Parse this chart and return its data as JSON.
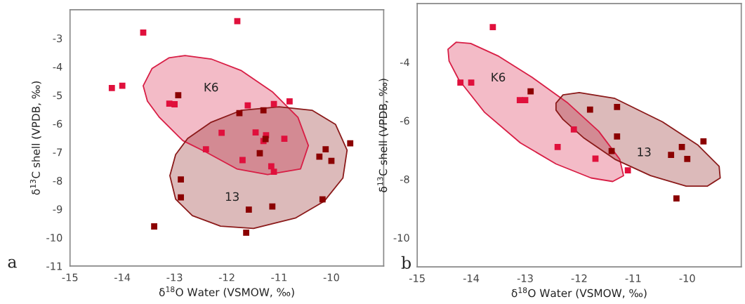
{
  "chart_data": [
    {
      "type": "scatter",
      "xlabel": "δ$^{18}$O Water (VSMOW, ‰)",
      "ylabel": "δ$^{13}$C shell (VPDB, ‰)",
      "xlim": [
        -15,
        -9
      ],
      "xticks": [
        -15,
        -14,
        -13,
        -12,
        -11,
        -10
      ],
      "ylim": [
        -11,
        -2
      ],
      "yticks": [
        -11,
        -10,
        -9,
        -8,
        -7,
        -6,
        -5,
        -4,
        -3
      ],
      "grid": false,
      "legend": false,
      "series": [
        {
          "type": "area",
          "color": "#d81e45",
          "x": [
            -13.6,
            -13.43,
            -13.11,
            -12.8,
            -12.3,
            -11.72,
            -11.13,
            -10.64,
            -10.44,
            -10.59,
            -11.22,
            -11.81,
            -12.39,
            -12.84,
            -13.29,
            -13.52
          ],
          "values": [
            -4.67,
            -4.06,
            -3.69,
            -3.61,
            -3.73,
            -4.14,
            -4.88,
            -5.78,
            -6.77,
            -7.59,
            -7.79,
            -7.59,
            -7.01,
            -6.6,
            -5.78,
            -5.21
          ]
        },
        {
          "type": "area",
          "color": "#8b1a1a",
          "x": [
            -13.09,
            -12.98,
            -12.75,
            -12.3,
            -11.72,
            -11.0,
            -10.37,
            -9.92,
            -9.7,
            -9.78,
            -10.14,
            -10.68,
            -11.49,
            -12.12,
            -12.66,
            -12.98
          ],
          "values": [
            -7.83,
            -7.09,
            -6.52,
            -5.95,
            -5.53,
            -5.41,
            -5.53,
            -6.03,
            -6.93,
            -7.91,
            -8.73,
            -9.31,
            -9.68,
            -9.6,
            -9.23,
            -8.65
          ]
        },
        {
          "color": "#e0103c",
          "marker": "square",
          "x": [
            -13.6,
            -11.8,
            -14.2,
            -14.0,
            -13.1,
            -13.0,
            -11.6,
            -11.1,
            -10.8,
            -12.1,
            -10.9,
            -11.7
          ],
          "values": [
            -2.8,
            -2.4,
            -4.75,
            -4.67,
            -5.3,
            -5.32,
            -5.36,
            -5.31,
            -5.22,
            -6.32,
            -6.53,
            -7.28
          ]
        },
        {
          "color": "#e0103c",
          "marker": "square",
          "x": [
            -12.4,
            -11.45,
            -11.25,
            -11.3,
            -11.15,
            -11.1
          ],
          "values": [
            -6.9,
            -6.31,
            -6.41,
            -6.61,
            -7.5,
            -7.69
          ]
        },
        {
          "color": "#8b0000",
          "marker": "square",
          "x": [
            -12.93,
            -11.76,
            -11.3,
            -11.26,
            -11.37,
            -10.23,
            -10.11,
            -10.0,
            -12.88,
            -12.88,
            -11.58,
            -11.13,
            -10.17,
            -13.39,
            -11.63,
            -9.64
          ],
          "values": [
            -5.0,
            -5.63,
            -5.53,
            -6.54,
            -7.04,
            -7.16,
            -6.9,
            -7.31,
            -7.96,
            -8.59,
            -9.02,
            -8.91,
            -8.66,
            -9.61,
            -9.83,
            -6.69
          ]
        }
      ],
      "annotations": [
        "a",
        "K6",
        "13"
      ]
    },
    {
      "type": "scatter",
      "xlabel": "δ$^{18}$O Water (VSMOW, ‰)",
      "ylabel": "δ$^{13}$C shell (VPDB, ‰)",
      "xlim": [
        -15,
        -9
      ],
      "xticks": [
        -15,
        -14,
        -13,
        -12,
        -11,
        -10
      ],
      "ylim": [
        -11,
        -2
      ],
      "yticks": [
        -10,
        -8,
        -6,
        -4
      ],
      "grid": false,
      "legend": false,
      "series": [
        {
          "type": "area",
          "color": "#d81e45",
          "x": [
            -14.43,
            -14.28,
            -14.01,
            -13.49,
            -12.87,
            -12.21,
            -11.64,
            -11.25,
            -11.18,
            -11.38,
            -11.78,
            -12.43,
            -13.09,
            -13.75,
            -14.23,
            -14.41
          ],
          "values": [
            -3.56,
            -3.32,
            -3.36,
            -3.8,
            -4.52,
            -5.4,
            -6.36,
            -7.32,
            -7.88,
            -8.08,
            -7.96,
            -7.48,
            -6.76,
            -5.72,
            -4.6,
            -3.96
          ]
        },
        {
          "type": "area",
          "color": "#8b1a1a",
          "x": [
            -12.43,
            -12.3,
            -12.0,
            -11.34,
            -10.46,
            -9.8,
            -9.41,
            -9.39,
            -9.63,
            -10.02,
            -10.68,
            -11.34,
            -11.91,
            -12.3,
            -12.43
          ],
          "values": [
            -5.4,
            -5.12,
            -5.04,
            -5.24,
            -6.04,
            -6.84,
            -7.56,
            -7.96,
            -8.24,
            -8.24,
            -7.88,
            -7.32,
            -6.6,
            -5.96,
            -5.64
          ]
        },
        {
          "color": "#e0103c",
          "marker": "square",
          "x": [
            -13.6,
            -14.2,
            -14.0,
            -13.1,
            -13.0,
            -12.1,
            -12.4,
            -11.7,
            -11.1
          ],
          "values": [
            -2.8,
            -4.7,
            -4.7,
            -5.3,
            -5.3,
            -6.3,
            -6.9,
            -7.3,
            -7.7
          ]
        },
        {
          "color": "#8b0000",
          "marker": "square",
          "x": [
            -12.9,
            -11.8,
            -11.3,
            -11.3,
            -11.4,
            -10.3,
            -10.1,
            -10.0,
            -9.7,
            -10.2
          ],
          "values": [
            -5.0,
            -5.62,
            -5.53,
            -6.54,
            -7.04,
            -7.17,
            -6.9,
            -7.31,
            -6.71,
            -8.66
          ]
        }
      ],
      "annotations": [
        "b",
        "K6",
        "13"
      ]
    }
  ]
}
